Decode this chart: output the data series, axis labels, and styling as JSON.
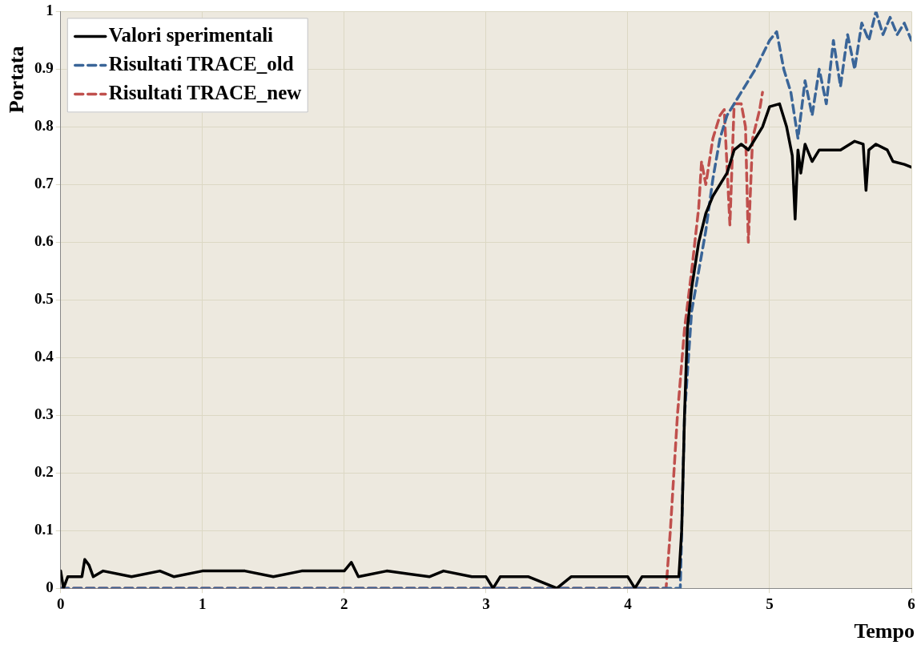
{
  "chart_data": {
    "type": "line",
    "xlabel": "Tempo",
    "ylabel": "Portata",
    "xlim": [
      0,
      6
    ],
    "xticks": [
      0,
      1,
      2,
      3,
      4,
      5,
      6
    ],
    "ylim": [
      0,
      1
    ],
    "yticks": [
      0,
      0.1,
      0.2,
      0.3,
      0.4,
      0.5,
      0.6,
      0.7,
      0.8,
      0.9,
      1
    ],
    "grid": true,
    "legend": "top left",
    "marker": "none",
    "series": [
      {
        "name": "Valori sperimentali",
        "color": "#000000",
        "line_style": "solid",
        "x": [
          0,
          0.02,
          0.05,
          0.15,
          0.17,
          0.2,
          0.23,
          0.3,
          0.5,
          0.7,
          0.8,
          1,
          1.3,
          1.5,
          1.7,
          2,
          2.05,
          2.1,
          2.3,
          2.6,
          2.7,
          2.9,
          3,
          3.05,
          3.1,
          3.3,
          3.5,
          3.6,
          3.8,
          4,
          4.05,
          4.1,
          4.3,
          4.36,
          4.38,
          4.4,
          4.42,
          4.45,
          4.5,
          4.55,
          4.6,
          4.7,
          4.75,
          4.8,
          4.85,
          4.9,
          4.95,
          5,
          5.07,
          5.12,
          5.16,
          5.18,
          5.2,
          5.22,
          5.25,
          5.3,
          5.35,
          5.5,
          5.6,
          5.66,
          5.68,
          5.7,
          5.75,
          5.83,
          5.87,
          5.95,
          6
        ],
        "values": [
          0.03,
          0,
          0.02,
          0.02,
          0.05,
          0.04,
          0.02,
          0.03,
          0.02,
          0.03,
          0.02,
          0.03,
          0.03,
          0.02,
          0.03,
          0.03,
          0.045,
          0.02,
          0.03,
          0.02,
          0.03,
          0.02,
          0.02,
          0,
          0.02,
          0.02,
          0,
          0.02,
          0.02,
          0.02,
          0,
          0.02,
          0.02,
          0.02,
          0.1,
          0.3,
          0.45,
          0.52,
          0.6,
          0.65,
          0.68,
          0.72,
          0.76,
          0.77,
          0.76,
          0.78,
          0.8,
          0.835,
          0.84,
          0.8,
          0.75,
          0.64,
          0.76,
          0.72,
          0.77,
          0.74,
          0.76,
          0.76,
          0.775,
          0.77,
          0.69,
          0.76,
          0.77,
          0.76,
          0.74,
          0.735,
          0.73
        ]
      },
      {
        "name": "Risultati TRACE_old",
        "color": "#3a6598",
        "line_style": "dashed",
        "x": [
          0,
          4.37,
          4.4,
          4.45,
          4.5,
          4.55,
          4.6,
          4.65,
          4.7,
          4.8,
          4.9,
          5,
          5.05,
          5.1,
          5.15,
          5.2,
          5.25,
          5.3,
          5.35,
          5.4,
          5.45,
          5.5,
          5.55,
          5.6,
          5.65,
          5.7,
          5.75,
          5.8,
          5.85,
          5.9,
          5.95,
          6
        ],
        "values": [
          0,
          0,
          0.3,
          0.48,
          0.55,
          0.62,
          0.71,
          0.78,
          0.82,
          0.86,
          0.9,
          0.95,
          0.965,
          0.9,
          0.86,
          0.78,
          0.88,
          0.82,
          0.9,
          0.84,
          0.95,
          0.87,
          0.96,
          0.9,
          0.98,
          0.95,
          1,
          0.96,
          0.99,
          0.96,
          0.98,
          0.95
        ]
      },
      {
        "name": "Risultati TRACE_new",
        "color": "#c0504d",
        "line_style": "dashed",
        "x": [
          0,
          4.27,
          4.3,
          4.35,
          4.4,
          4.45,
          4.5,
          4.52,
          4.55,
          4.6,
          4.65,
          4.68,
          4.72,
          4.75,
          4.8,
          4.83,
          4.85,
          4.88,
          4.93,
          4.95
        ],
        "values": [
          0,
          0,
          0.1,
          0.3,
          0.45,
          0.55,
          0.66,
          0.74,
          0.7,
          0.78,
          0.82,
          0.83,
          0.63,
          0.84,
          0.84,
          0.8,
          0.6,
          0.78,
          0.83,
          0.86
        ]
      }
    ]
  }
}
